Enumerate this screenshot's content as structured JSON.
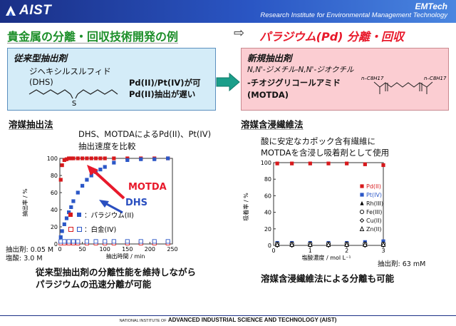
{
  "header": {
    "logo": "AIST",
    "org_title": "EMTech",
    "org_subtitle": "Research Institute for Environmental Management Technology"
  },
  "headline": {
    "left": "貴金属の分離・回収技術開発の例",
    "arrow": "⇨",
    "right": "パラジウム(Pd) 分離・回収"
  },
  "left_box": {
    "label": "従来型抽出剤",
    "name": "ジヘキシルスルフィド",
    "abbr": "(DHS)",
    "note1": "Pd(II)/Pt(IV)が可",
    "note2": "Pd(II)抽出が遅い",
    "struct_atom": "S"
  },
  "right_box": {
    "label": "新規抽出剤",
    "name1": "N,N'-ジメチル-N,N'-ジオクチル",
    "name2": "-チオジグリコールアミド",
    "abbr": "(MOTDA)",
    "struct_left": "n–C8H17",
    "struct_right": "n–C8H17"
  },
  "section_left": {
    "title": "溶媒抽出法",
    "desc1": "DHS、MOTDAによるPd(II)、Pt(IV)",
    "desc2": "抽出速度を比較",
    "cond1": "抽出剤: 0.05 M",
    "cond2": "塩酸: 3.0 M",
    "conclusion1": "従来型抽出剤の分離性能を維持しながら",
    "conclusion2": "パラジウムの迅速分離が可能"
  },
  "section_right": {
    "title": "溶媒含浸繊維法",
    "desc1": "酸に安定なカポック含有繊維に",
    "desc2": "MOTDAを含浸し吸着剤として使用",
    "cond": "抽出剤: 63 mM",
    "conclusion": "溶媒含浸繊維法による分離も可能"
  },
  "footer": {
    "small_prefix": "NATIONAL INSTITUTE OF",
    "bold_text": "ADVANCED INDUSTRIAL SCIENCE AND TECHNOLOGY (AIST)"
  },
  "chart_data": [
    {
      "type": "scatter",
      "xlabel": "抽出時間 / min",
      "ylabel": "抽出率 / %",
      "xlim": [
        0,
        250
      ],
      "ylim": [
        0,
        100
      ],
      "xticks": [
        "0",
        "50",
        "100",
        "150",
        "200",
        "250"
      ],
      "yticks": [
        "0",
        "20",
        "40",
        "60",
        "80",
        "100"
      ],
      "grid": false,
      "legend_items": [
        {
          "label": "：パラジウム(II)",
          "filled": true
        },
        {
          "label": "：白金(IV)",
          "filled": false
        }
      ],
      "annotations": [
        {
          "text": "MOTDA",
          "color": "#e8192b"
        },
        {
          "text": "DHS",
          "color": "#2a4fc0"
        }
      ],
      "series": [
        {
          "name": "MOTDA Pd(II)",
          "color": "#d7191c",
          "filled": true,
          "x": [
            2,
            5,
            10,
            15,
            20,
            25,
            30,
            40,
            50,
            60,
            70,
            80,
            90,
            100,
            120,
            150,
            180,
            210,
            240
          ],
          "y": [
            75,
            92,
            98,
            99,
            100,
            100,
            100,
            100,
            100,
            100,
            100,
            100,
            100,
            100,
            100,
            100,
            100,
            100,
            100
          ]
        },
        {
          "name": "DHS Pd(II)",
          "color": "#2b57c7",
          "filled": true,
          "x": [
            2,
            5,
            10,
            15,
            20,
            25,
            30,
            40,
            50,
            60,
            70,
            80,
            90,
            100,
            120,
            150,
            180,
            210,
            240
          ],
          "y": [
            8,
            15,
            23,
            30,
            37,
            43,
            50,
            60,
            68,
            75,
            80,
            84,
            87,
            90,
            95,
            98,
            99,
            99,
            100
          ]
        },
        {
          "name": "MOTDA Pt(IV)",
          "color": "#d7191c",
          "filled": false,
          "x": [
            2,
            10,
            20,
            30,
            40,
            60,
            80,
            100,
            120,
            150,
            180,
            210,
            240
          ],
          "y": [
            1,
            1,
            1,
            1,
            1,
            1,
            1,
            1,
            1,
            1,
            1,
            1,
            1
          ]
        },
        {
          "name": "DHS Pt(IV)",
          "color": "#2b57c7",
          "filled": false,
          "x": [
            2,
            10,
            20,
            30,
            40,
            60,
            80,
            100,
            120,
            150,
            180,
            210,
            240
          ],
          "y": [
            3,
            3,
            3,
            3,
            3,
            3,
            3,
            3,
            3,
            3,
            3,
            3,
            3
          ]
        }
      ]
    },
    {
      "type": "scatter",
      "xlabel": "塩酸濃度 / mol L⁻¹",
      "ylabel": "吸着率 / %",
      "xlim": [
        0,
        3
      ],
      "ylim": [
        0,
        100
      ],
      "xticks": [
        "0",
        "1",
        "2",
        "3"
      ],
      "yticks": [
        "0",
        "20",
        "40",
        "60",
        "80",
        "100"
      ],
      "grid": false,
      "legend_placement": "right",
      "series": [
        {
          "name": "Pd(II)",
          "color": "#d7191c",
          "marker": "square-filled",
          "x": [
            0.1,
            0.5,
            1,
            1.5,
            2,
            2.5,
            3
          ],
          "y": [
            99,
            99,
            99,
            99,
            99,
            98,
            97
          ]
        },
        {
          "name": "Pt(IV)",
          "color": "#2b57c7",
          "marker": "square-filled",
          "x": [
            0.1,
            0.5,
            1,
            1.5,
            2,
            2.5,
            3
          ],
          "y": [
            3,
            3,
            3,
            3,
            3,
            4,
            5
          ]
        },
        {
          "name": "Rh(III)",
          "color": "#000000",
          "marker": "triangle-filled",
          "x": [
            0.1,
            0.5,
            1,
            1.5,
            2,
            2.5,
            3
          ],
          "y": [
            1,
            1,
            1,
            1,
            1,
            1,
            1
          ]
        },
        {
          "name": "Fe(III)",
          "color": "#000000",
          "marker": "circle-open",
          "x": [
            0.1,
            0.5,
            1,
            1.5,
            2,
            2.5,
            3
          ],
          "y": [
            2,
            2,
            2,
            2,
            2,
            2,
            2
          ]
        },
        {
          "name": "Cu(II)",
          "color": "#000000",
          "marker": "diamond-open",
          "x": [
            0.1,
            0.5,
            1,
            1.5,
            2,
            2.5,
            3
          ],
          "y": [
            0,
            0,
            0,
            0,
            0,
            0,
            0
          ]
        },
        {
          "name": "Zn(II)",
          "color": "#000000",
          "marker": "triangle-open",
          "x": [
            0.1,
            0.5,
            1,
            1.5,
            2,
            2.5,
            3
          ],
          "y": [
            1,
            1,
            1,
            1,
            1,
            1,
            1
          ]
        }
      ]
    }
  ]
}
